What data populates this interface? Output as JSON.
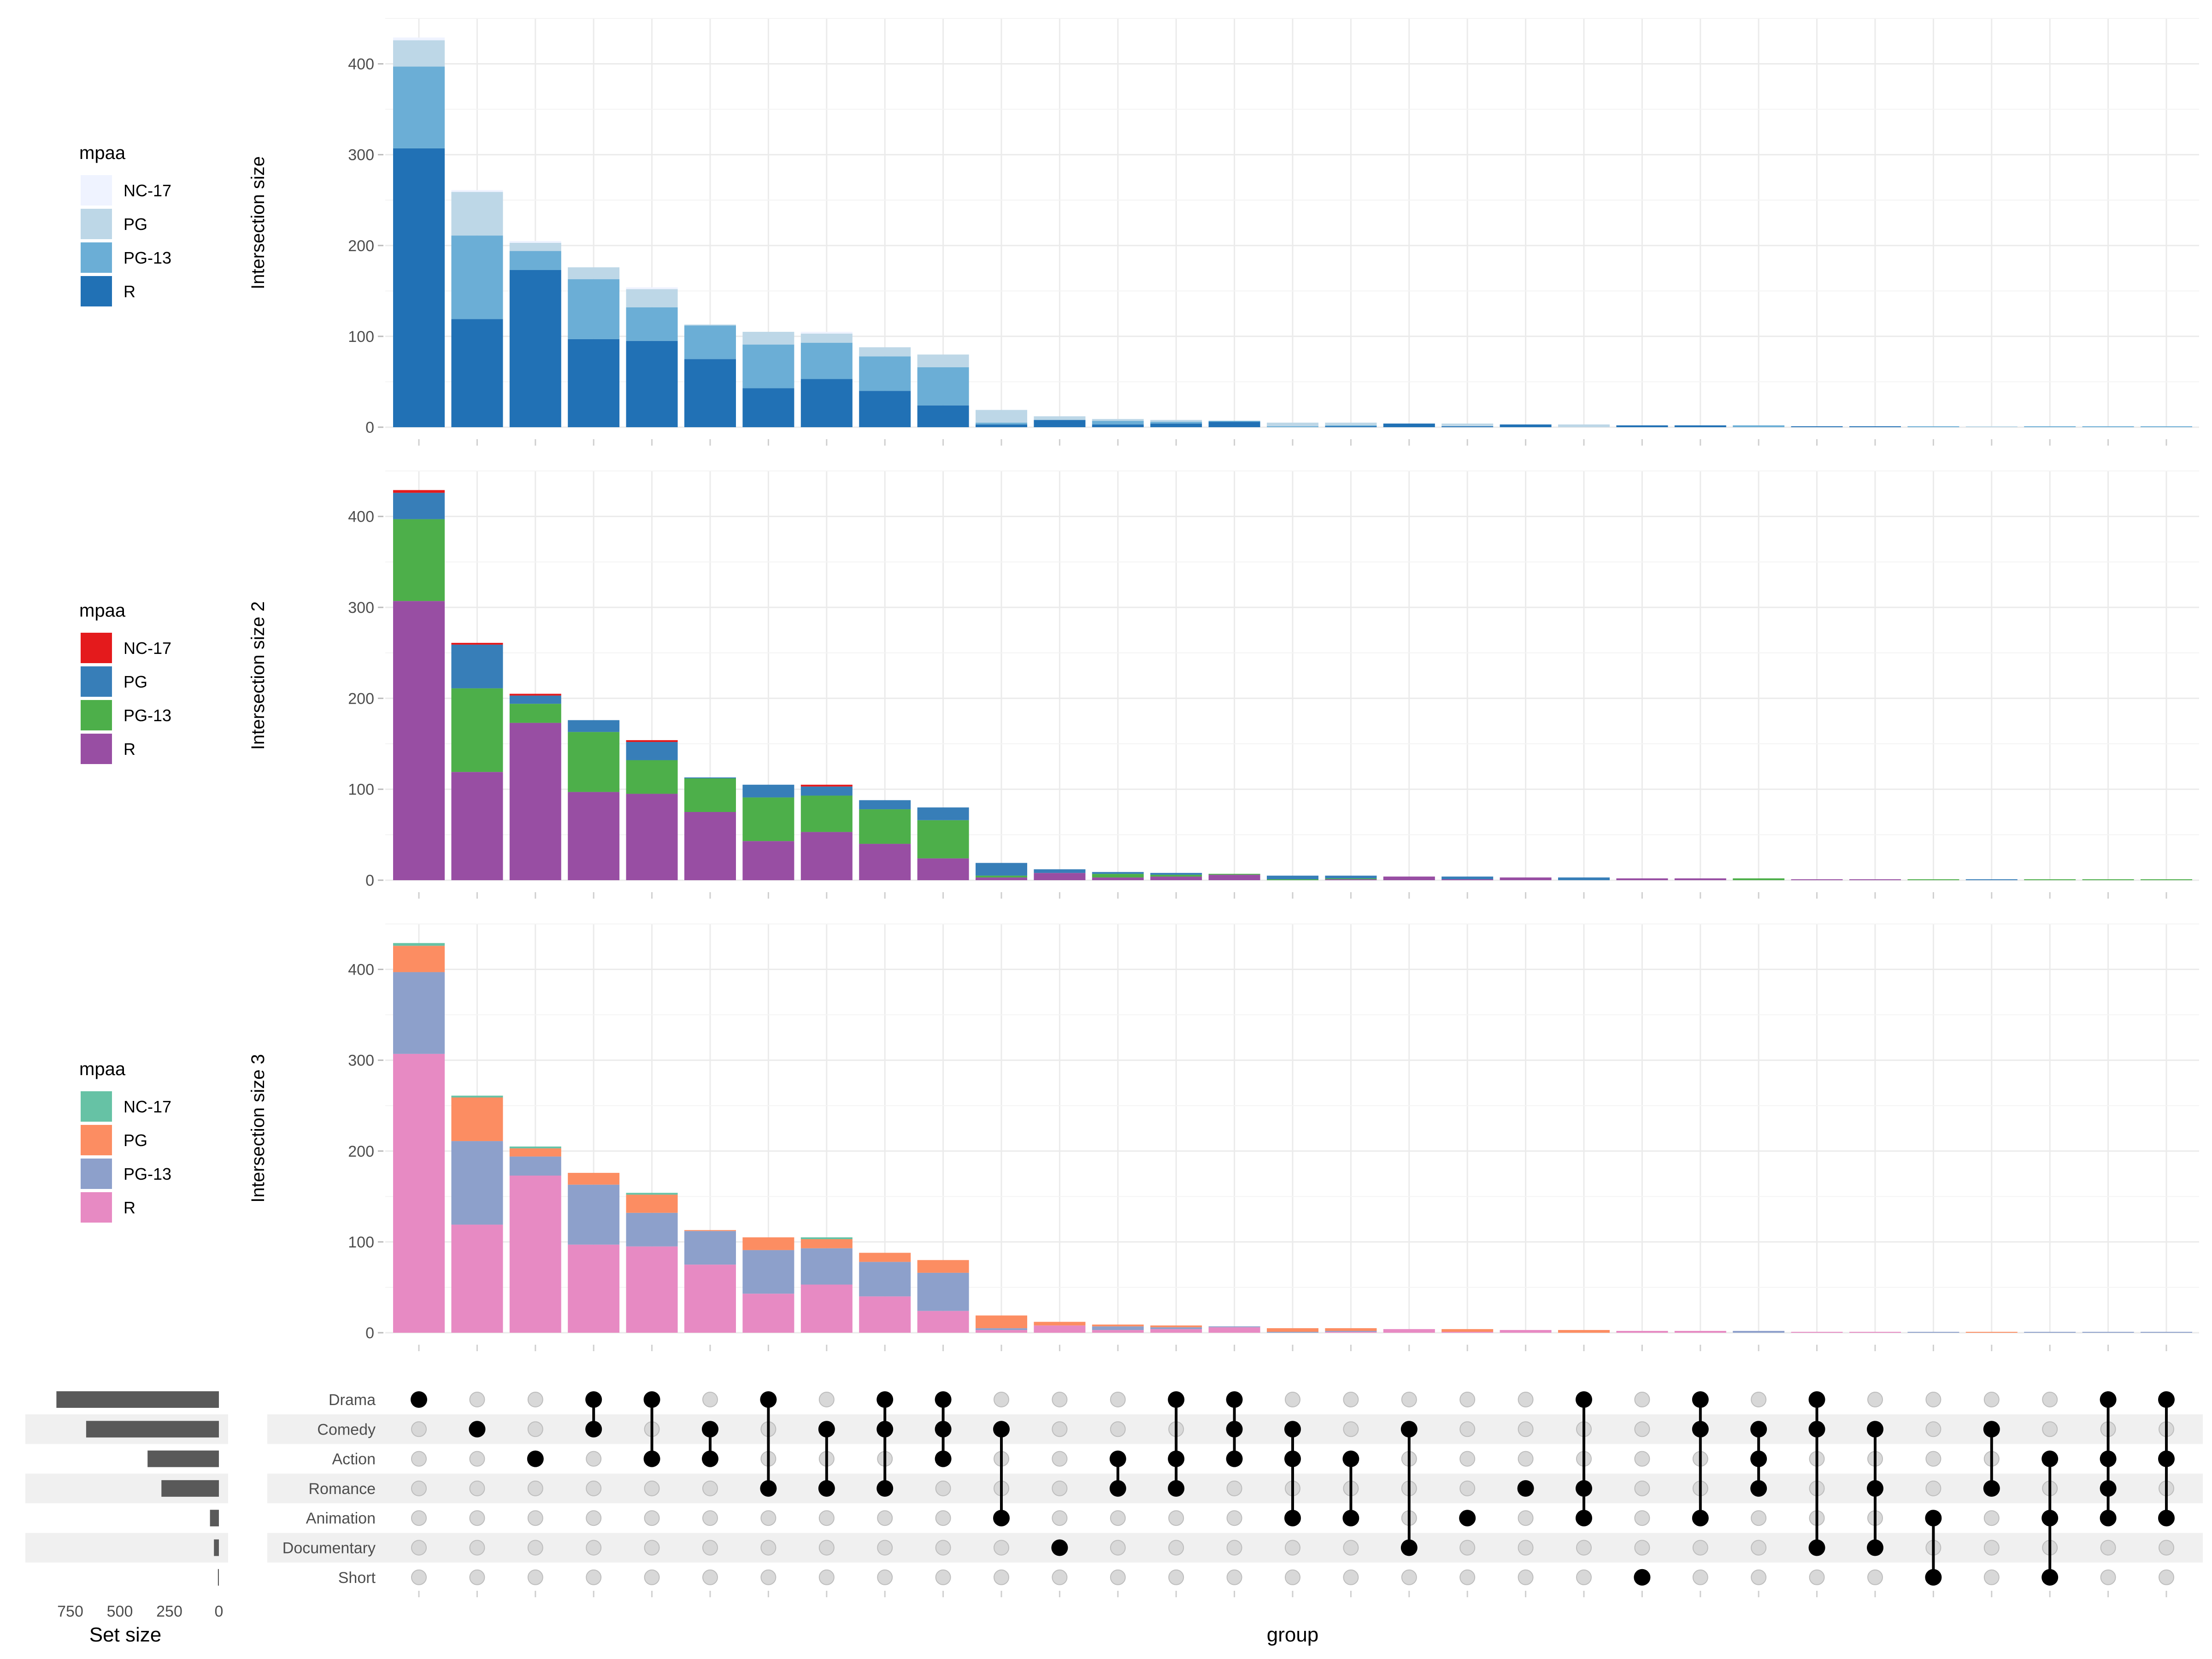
{
  "chart_data": {
    "type": "bar",
    "subtype": "upset",
    "xlabel": "group",
    "set_size_label": "Set size",
    "set_size_ticks": [
      750,
      500,
      250,
      0
    ],
    "set_size_lim": [
      0,
      880
    ],
    "sets": [
      "Drama",
      "Comedy",
      "Action",
      "Romance",
      "Animation",
      "Documentary",
      "Short"
    ],
    "set_sizes": [
      820,
      670,
      360,
      290,
      45,
      25,
      5
    ],
    "stack_order": [
      "NC-17",
      "PG",
      "PG-13",
      "R"
    ],
    "intersections": [
      {
        "sets": [
          "Drama"
        ],
        "NC-17": 3,
        "PG": 29,
        "PG-13": 90,
        "R": 307
      },
      {
        "sets": [
          "Comedy"
        ],
        "NC-17": 2,
        "PG": 48,
        "PG-13": 92,
        "R": 119
      },
      {
        "sets": [
          "Action"
        ],
        "NC-17": 2,
        "PG": 9,
        "PG-13": 21,
        "R": 173
      },
      {
        "sets": [
          "Drama",
          "Comedy"
        ],
        "NC-17": 0,
        "PG": 13,
        "PG-13": 66,
        "R": 97
      },
      {
        "sets": [
          "Drama",
          "Action"
        ],
        "NC-17": 2,
        "PG": 20,
        "PG-13": 37,
        "R": 95
      },
      {
        "sets": [
          "Comedy",
          "Action"
        ],
        "NC-17": 0,
        "PG": 1,
        "PG-13": 37,
        "R": 75
      },
      {
        "sets": [
          "Drama",
          "Romance"
        ],
        "NC-17": 0,
        "PG": 14,
        "PG-13": 48,
        "R": 43
      },
      {
        "sets": [
          "Comedy",
          "Romance"
        ],
        "NC-17": 2,
        "PG": 10,
        "PG-13": 40,
        "R": 53
      },
      {
        "sets": [
          "Drama",
          "Comedy",
          "Romance"
        ],
        "NC-17": 0,
        "PG": 10,
        "PG-13": 38,
        "R": 40
      },
      {
        "sets": [
          "Drama",
          "Comedy",
          "Action"
        ],
        "NC-17": 0,
        "PG": 14,
        "PG-13": 42,
        "R": 24
      },
      {
        "sets": [
          "Comedy",
          "Animation"
        ],
        "NC-17": 0,
        "PG": 14,
        "PG-13": 2,
        "R": 3
      },
      {
        "sets": [
          "Documentary"
        ],
        "NC-17": 0,
        "PG": 4,
        "PG-13": 0,
        "R": 8
      },
      {
        "sets": [
          "Action",
          "Romance"
        ],
        "NC-17": 0,
        "PG": 2,
        "PG-13": 4,
        "R": 3
      },
      {
        "sets": [
          "Drama",
          "Action",
          "Romance"
        ],
        "NC-17": 0,
        "PG": 2,
        "PG-13": 2,
        "R": 4
      },
      {
        "sets": [
          "Drama",
          "Comedy",
          "Action"
        ],
        "NC-17": 0,
        "PG": 0,
        "PG-13": 1,
        "R": 6
      },
      {
        "sets": [
          "Comedy",
          "Action",
          "Animation"
        ],
        "NC-17": 0,
        "PG": 4,
        "PG-13": 1,
        "R": 0
      },
      {
        "sets": [
          "Action",
          "Animation"
        ],
        "NC-17": 0,
        "PG": 3,
        "PG-13": 1,
        "R": 1
      },
      {
        "sets": [
          "Comedy",
          "Documentary"
        ],
        "NC-17": 0,
        "PG": 0,
        "PG-13": 0,
        "R": 4
      },
      {
        "sets": [
          "Animation"
        ],
        "NC-17": 0,
        "PG": 3,
        "PG-13": 0,
        "R": 1
      },
      {
        "sets": [
          "Romance"
        ],
        "NC-17": 0,
        "PG": 0,
        "PG-13": 0,
        "R": 3
      },
      {
        "sets": [
          "Drama",
          "Romance",
          "Animation"
        ],
        "NC-17": 0,
        "PG": 3,
        "PG-13": 0,
        "R": 0
      },
      {
        "sets": [
          "Short"
        ],
        "NC-17": 0,
        "PG": 0,
        "PG-13": 0,
        "R": 2
      },
      {
        "sets": [
          "Drama",
          "Comedy",
          "Animation"
        ],
        "NC-17": 0,
        "PG": 0,
        "PG-13": 0,
        "R": 2
      },
      {
        "sets": [
          "Comedy",
          "Action",
          "Romance"
        ],
        "NC-17": 0,
        "PG": 0,
        "PG-13": 2,
        "R": 0
      },
      {
        "sets": [
          "Drama",
          "Comedy",
          "Documentary"
        ],
        "NC-17": 0,
        "PG": 0,
        "PG-13": 0,
        "R": 1
      },
      {
        "sets": [
          "Comedy",
          "Romance",
          "Documentary"
        ],
        "NC-17": 0,
        "PG": 0,
        "PG-13": 0,
        "R": 1
      },
      {
        "sets": [
          "Animation",
          "Short"
        ],
        "NC-17": 0,
        "PG": 0,
        "PG-13": 1,
        "R": 0
      },
      {
        "sets": [
          "Comedy",
          "Romance"
        ],
        "NC-17": 0,
        "PG": 1,
        "PG-13": 0,
        "R": 0
      },
      {
        "sets": [
          "Action",
          "Animation",
          "Short"
        ],
        "NC-17": 0,
        "PG": 0,
        "PG-13": 1,
        "R": 0
      },
      {
        "sets": [
          "Drama",
          "Action",
          "Romance",
          "Animation"
        ],
        "NC-17": 0,
        "PG": 0,
        "PG-13": 1,
        "R": 0
      },
      {
        "sets": [
          "Drama",
          "Action",
          "Animation"
        ],
        "NC-17": 0,
        "PG": 0,
        "PG-13": 1,
        "R": 0
      }
    ],
    "panels": [
      {
        "ylabel": "Intersection size",
        "legend_title": "mpaa",
        "ylim": [
          0,
          450
        ],
        "yticks": [
          0,
          100,
          200,
          300,
          400
        ],
        "fills": {
          "NC-17": "#eff3ff",
          "PG": "#bdd7e7",
          "PG-13": "#6baed6",
          "R": "#2171b5"
        }
      },
      {
        "ylabel": "Intersection size 2",
        "legend_title": "mpaa",
        "ylim": [
          0,
          450
        ],
        "yticks": [
          0,
          100,
          200,
          300,
          400
        ],
        "fills": {
          "NC-17": "#e41a1c",
          "PG": "#377eb8",
          "PG-13": "#4daf4a",
          "R": "#984ea3"
        }
      },
      {
        "ylabel": "Intersection size 3",
        "legend_title": "mpaa",
        "ylim": [
          0,
          450
        ],
        "yticks": [
          0,
          100,
          200,
          300,
          400
        ],
        "fills": {
          "NC-17": "#66c2a5",
          "PG": "#fc8d62",
          "PG-13": "#8da0cb",
          "R": "#e78ac3"
        }
      }
    ],
    "legend_position": "left"
  }
}
